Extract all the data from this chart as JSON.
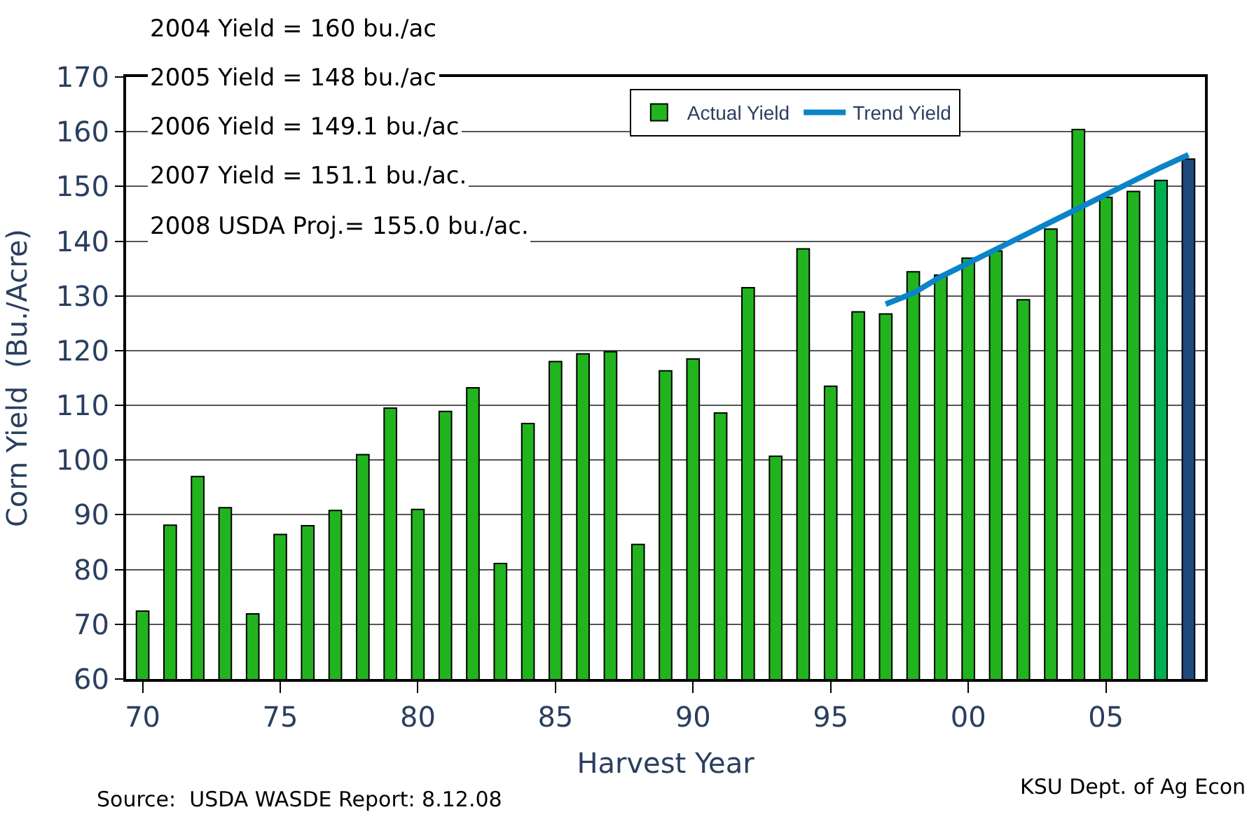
{
  "chart_data": {
    "type": "bar",
    "xlabel": "Harvest Year",
    "ylabel": "Corn Yield  (Bu./Acre)",
    "x": [
      1970,
      1971,
      1972,
      1973,
      1974,
      1975,
      1976,
      1977,
      1978,
      1979,
      1980,
      1981,
      1982,
      1983,
      1984,
      1985,
      1986,
      1987,
      1988,
      1989,
      1990,
      1991,
      1992,
      1993,
      1994,
      1995,
      1996,
      1997,
      1998,
      1999,
      2000,
      2001,
      2002,
      2003,
      2004,
      2005,
      2006,
      2007,
      2008
    ],
    "series": [
      {
        "name": "Actual Yield",
        "color": "#22b41e",
        "colors": [
          "#22b41e",
          "#22b41e",
          "#22b41e",
          "#22b41e",
          "#22b41e",
          "#22b41e",
          "#22b41e",
          "#22b41e",
          "#22b41e",
          "#22b41e",
          "#22b41e",
          "#22b41e",
          "#22b41e",
          "#22b41e",
          "#22b41e",
          "#22b41e",
          "#22b41e",
          "#22b41e",
          "#22b41e",
          "#22b41e",
          "#22b41e",
          "#22b41e",
          "#22b41e",
          "#22b41e",
          "#22b41e",
          "#22b41e",
          "#22b41e",
          "#22b41e",
          "#22b41e",
          "#22b41e",
          "#22b41e",
          "#22b41e",
          "#22b41e",
          "#22b41e",
          "#22b41e",
          "#22b41e",
          "#22b41e",
          "#00b050",
          "#1f497d"
        ],
        "values": [
          72.4,
          88.1,
          97.0,
          91.3,
          71.9,
          86.4,
          88.0,
          90.8,
          101.0,
          109.5,
          91.0,
          108.9,
          113.2,
          81.1,
          106.7,
          118.0,
          119.4,
          119.8,
          84.6,
          116.3,
          118.5,
          108.6,
          131.5,
          100.7,
          138.6,
          113.5,
          127.1,
          126.7,
          134.4,
          133.8,
          136.9,
          138.2,
          129.3,
          142.2,
          160.4,
          148.0,
          149.1,
          151.1,
          155.0
        ]
      },
      {
        "name": "Trend Yield",
        "type": "line",
        "color": "#0a84c8",
        "x": [
          1997,
          1998,
          1999,
          2000,
          2001,
          2002,
          2003,
          2004,
          2005,
          2006,
          2007,
          2008
        ],
        "values": [
          128.5,
          130.5,
          133.5,
          136,
          138.5,
          141,
          143.5,
          146,
          148.5,
          151,
          153.5,
          155.8
        ]
      }
    ],
    "xlim": [
      1969.4,
      2008.6
    ],
    "xticks": [
      {
        "value": 1970,
        "label": "70"
      },
      {
        "value": 1975,
        "label": "75"
      },
      {
        "value": 1980,
        "label": "80"
      },
      {
        "value": 1985,
        "label": "85"
      },
      {
        "value": 1990,
        "label": "90"
      },
      {
        "value": 1995,
        "label": "95"
      },
      {
        "value": 2000,
        "label": "00"
      },
      {
        "value": 2005,
        "label": "05"
      }
    ],
    "ylim": [
      60,
      170
    ],
    "yticks": [
      60,
      70,
      80,
      90,
      100,
      110,
      120,
      130,
      140,
      150,
      160,
      170
    ],
    "grid": "y",
    "legend": "top",
    "line_style": "solid",
    "annotations": [
      "2004 Yield = 160 bu./ac",
      "2005 Yield = 148 bu./ac",
      "2006 Yield = 149.1 bu./ac",
      "2007 Yield = 151.1 bu./ac.",
      "2008 USDA Proj.= 155.0 bu./ac.",
      "Source:  USDA WASDE Report: 8.12.08",
      "KSU Dept. of Ag Econ"
    ]
  }
}
